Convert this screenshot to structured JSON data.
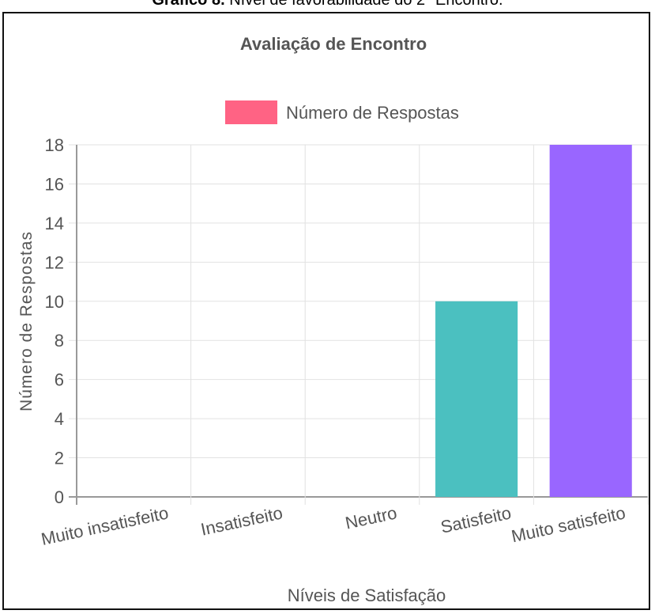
{
  "caption": {
    "bold": "Gráfico 8.",
    "rest": " Nível de favorabilidade do 2º Encontro."
  },
  "chart_data": {
    "type": "bar",
    "title": "Avaliação de Encontro",
    "categories": [
      "Muito insatisfeito",
      "Insatisfeito",
      "Neutro",
      "Satisfeito",
      "Muito satisfeito"
    ],
    "series": [
      {
        "name": "Número de Respostas",
        "values": [
          0,
          0,
          0,
          10,
          18
        ],
        "colors": [
          "#ff6384",
          "#36a2eb",
          "#ffce56",
          "#4bc0c0",
          "#9966ff"
        ]
      }
    ],
    "legend_color": "#ff6384",
    "xlabel": "Níveis de Satisfação",
    "ylabel": "Número de Respostas",
    "ylim": [
      0,
      18
    ],
    "yticks": [
      0,
      2,
      4,
      6,
      8,
      10,
      12,
      14,
      16,
      18
    ],
    "grid": true,
    "legend_position": "top"
  }
}
